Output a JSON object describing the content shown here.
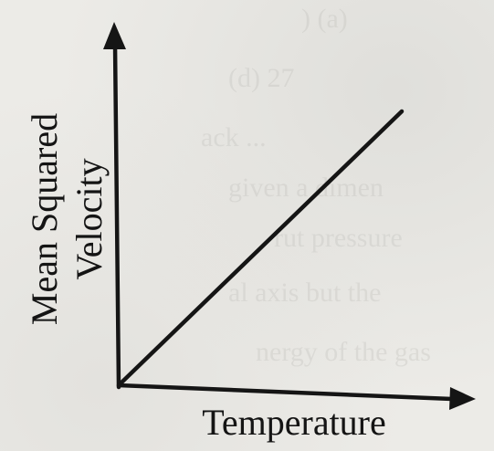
{
  "chart_data": {
    "type": "line",
    "title": "",
    "xlabel": "Temperature",
    "ylabel": [
      "Mean Squared",
      "Velocity"
    ],
    "series": [
      {
        "x": [
          0,
          1
        ],
        "values": [
          0,
          1
        ]
      }
    ],
    "xlim": [
      0,
      1.2
    ],
    "ylim": [
      0,
      1.25
    ],
    "grid": false,
    "ticks": false,
    "colors": {
      "line": "#151515",
      "axis": "#151515",
      "background": "#ecebe7"
    }
  }
}
